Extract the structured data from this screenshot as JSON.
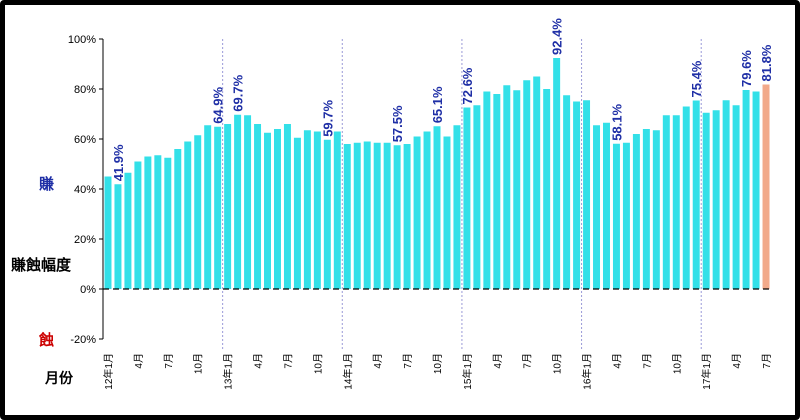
{
  "chart_data": {
    "type": "bar",
    "title": "",
    "ylabel": "賺蝕幅度",
    "ylabel_positive": "賺",
    "ylabel_negative": "蝕",
    "xlabel": "月份",
    "ylim": [
      -20,
      100
    ],
    "yticks": [
      "100%",
      "80%",
      "60%",
      "40%",
      "20%",
      "0%",
      "-20%"
    ],
    "x_tick_labels": [
      "12年1月",
      "4月",
      "7月",
      "10月",
      "13年1月",
      "4月",
      "7月",
      "10月",
      "14年1月",
      "4月",
      "7月",
      "10月",
      "15年1月",
      "4月",
      "7月",
      "10月",
      "16年1月",
      "4月",
      "7月",
      "10月",
      "17年1月",
      "4月",
      "7月"
    ],
    "bar_color": "#33e0e8",
    "highlight_color": "#f2a98a",
    "label_color": "#1f2fa6",
    "categories": [
      "12年1月",
      "12年2月",
      "12年3月",
      "12年4月",
      "12年5月",
      "12年6月",
      "12年7月",
      "12年8月",
      "12年9月",
      "12年10月",
      "12年11月",
      "12年12月",
      "13年1月",
      "13年2月",
      "13年3月",
      "13年4月",
      "13年5月",
      "13年6月",
      "13年7月",
      "13年8月",
      "13年9月",
      "13年10月",
      "13年11月",
      "13年12月",
      "14年1月",
      "14年2月",
      "14年3月",
      "14年4月",
      "14年5月",
      "14年6月",
      "14年7月",
      "14年8月",
      "14年9月",
      "14年10月",
      "14年11月",
      "14年12月",
      "15年1月",
      "15年2月",
      "15年3月",
      "15年4月",
      "15年5月",
      "15年6月",
      "15年7月",
      "15年8月",
      "15年9月",
      "15年10月",
      "15年11月",
      "15年12月",
      "16年1月",
      "16年2月",
      "16年3月",
      "16年4月",
      "16年5月",
      "16年6月",
      "16年7月",
      "16年8月",
      "16年9月",
      "16年10月",
      "16年11月",
      "16年12月",
      "17年1月",
      "17年2月",
      "17年3月",
      "17年4月",
      "17年5月",
      "17年6月",
      "17年7月"
    ],
    "values": [
      45,
      41.9,
      46.5,
      51,
      53,
      53.5,
      52.5,
      56,
      59,
      61.5,
      65.5,
      64.9,
      66,
      69.7,
      69.5,
      66,
      62.5,
      64,
      66,
      60.5,
      63.5,
      63,
      59.7,
      63,
      58,
      58.5,
      59,
      58.5,
      58.5,
      57.5,
      58,
      61,
      63,
      65.1,
      61,
      65.5,
      72.6,
      73.5,
      79,
      78,
      81.5,
      79.5,
      83.5,
      85,
      80,
      92.4,
      77.5,
      75,
      75.5,
      65.5,
      66.5,
      58.1,
      58.5,
      62,
      64,
      63.5,
      69.5,
      69.5,
      73,
      75.4,
      70.5,
      71.5,
      75.5,
      73.5,
      79.6,
      79,
      81.8
    ],
    "data_labels": [
      {
        "index": 1,
        "text": "41.9%"
      },
      {
        "index": 11,
        "text": "64.9%"
      },
      {
        "index": 13,
        "text": "69.7%"
      },
      {
        "index": 22,
        "text": "59.7%"
      },
      {
        "index": 29,
        "text": "57.5%"
      },
      {
        "index": 33,
        "text": "65.1%"
      },
      {
        "index": 36,
        "text": "72.6%"
      },
      {
        "index": 45,
        "text": "92.4%"
      },
      {
        "index": 51,
        "text": "58.1%"
      },
      {
        "index": 59,
        "text": "75.4%"
      },
      {
        "index": 64,
        "text": "79.6%"
      },
      {
        "index": 66,
        "text": "81.8%"
      }
    ],
    "highlight_index": 66,
    "year_divider_before_index": [
      12,
      24,
      36,
      48,
      60
    ],
    "grid": false
  }
}
